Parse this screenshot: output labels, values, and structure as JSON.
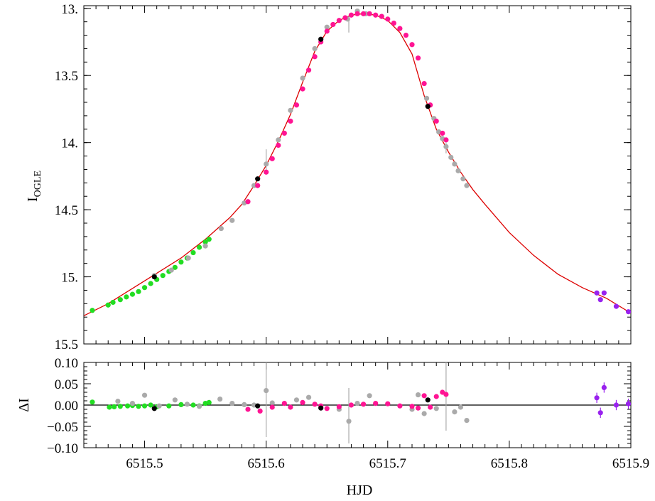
{
  "chart_data": [
    {
      "type": "scatter",
      "ylabel_main": "I",
      "ylabel_sub": "OGLE",
      "xlim": [
        6515.45,
        6515.9
      ],
      "ylim": [
        15.5,
        12.98
      ],
      "y_inverted": true,
      "yticks": [
        "13.",
        "13.5",
        "14.",
        "14.5",
        "15.",
        "15.5"
      ],
      "yticks_values": [
        13.0,
        13.5,
        14.0,
        14.5,
        15.0,
        15.5
      ],
      "model_curve": {
        "color": "#dd0000",
        "points": [
          [
            6515.45,
            15.29
          ],
          [
            6515.47,
            15.2
          ],
          [
            6515.5,
            15.03
          ],
          [
            6515.53,
            14.86
          ],
          [
            6515.55,
            14.72
          ],
          [
            6515.57,
            14.56
          ],
          [
            6515.58,
            14.46
          ],
          [
            6515.59,
            14.32
          ],
          [
            6515.6,
            14.17
          ],
          [
            6515.61,
            13.99
          ],
          [
            6515.62,
            13.79
          ],
          [
            6515.63,
            13.55
          ],
          [
            6515.64,
            13.32
          ],
          [
            6515.65,
            13.17
          ],
          [
            6515.66,
            13.09
          ],
          [
            6515.67,
            13.05
          ],
          [
            6515.68,
            13.04
          ],
          [
            6515.69,
            13.05
          ],
          [
            6515.7,
            13.09
          ],
          [
            6515.71,
            13.18
          ],
          [
            6515.72,
            13.34
          ],
          [
            6515.73,
            13.65
          ],
          [
            6515.74,
            13.9
          ],
          [
            6515.75,
            14.07
          ],
          [
            6515.76,
            14.22
          ],
          [
            6515.77,
            14.35
          ],
          [
            6515.78,
            14.46
          ],
          [
            6515.8,
            14.67
          ],
          [
            6515.82,
            14.84
          ],
          [
            6515.84,
            14.98
          ],
          [
            6515.86,
            15.08
          ],
          [
            6515.88,
            15.16
          ],
          [
            6515.9,
            15.27
          ]
        ]
      },
      "series": [
        {
          "color": "#22dd22",
          "points": [
            [
              6515.457,
              15.25
            ],
            [
              6515.47,
              15.21
            ],
            [
              6515.474,
              15.19
            ],
            [
              6515.48,
              15.17
            ],
            [
              6515.485,
              15.15
            ],
            [
              6515.49,
              15.13
            ],
            [
              6515.495,
              15.11
            ],
            [
              6515.5,
              15.08
            ],
            [
              6515.505,
              15.05
            ],
            [
              6515.51,
              15.02
            ],
            [
              6515.515,
              14.99
            ],
            [
              6515.52,
              14.96
            ],
            [
              6515.525,
              14.93
            ],
            [
              6515.53,
              14.89
            ],
            [
              6515.535,
              14.86
            ],
            [
              6515.54,
              14.82
            ],
            [
              6515.545,
              14.78
            ],
            [
              6515.55,
              14.74
            ],
            [
              6515.553,
              14.72
            ]
          ]
        },
        {
          "color": "#aaaaaa",
          "points": [
            [
              6515.508,
              14.99
            ],
            [
              6515.522,
              14.95
            ],
            [
              6515.536,
              14.86
            ],
            [
              6515.55,
              14.77
            ],
            [
              6515.563,
              14.64
            ],
            [
              6515.572,
              14.58
            ],
            [
              6515.582,
              14.45
            ],
            [
              6515.59,
              14.32
            ],
            [
              6515.6,
              14.16
            ],
            [
              6515.61,
              13.98
            ],
            [
              6515.62,
              13.76
            ],
            [
              6515.63,
              13.52
            ],
            [
              6515.64,
              13.3
            ],
            [
              6515.65,
              13.14
            ],
            [
              6515.667,
              13.08
            ],
            [
              6515.675,
              13.02
            ],
            [
              6515.682,
              13.04
            ],
            [
              6515.695,
              13.06
            ],
            [
              6515.732,
              13.67
            ],
            [
              6515.738,
              13.82
            ],
            [
              6515.742,
              13.92
            ],
            [
              6515.745,
              13.97
            ],
            [
              6515.748,
              14.03
            ],
            [
              6515.752,
              14.11
            ],
            [
              6515.755,
              14.16
            ],
            [
              6515.758,
              14.21
            ],
            [
              6515.762,
              14.27
            ],
            [
              6515.765,
              14.32
            ]
          ]
        },
        {
          "color": "#ff1493",
          "points": [
            [
              6515.585,
              14.44
            ],
            [
              6515.593,
              14.32
            ],
            [
              6515.6,
              14.22
            ],
            [
              6515.605,
              14.12
            ],
            [
              6515.61,
              14.02
            ],
            [
              6515.615,
              13.93
            ],
            [
              6515.62,
              13.84
            ],
            [
              6515.625,
              13.72
            ],
            [
              6515.63,
              13.6
            ],
            [
              6515.635,
              13.46
            ],
            [
              6515.64,
              13.36
            ],
            [
              6515.645,
              13.25
            ],
            [
              6515.65,
              13.17
            ],
            [
              6515.655,
              13.12
            ],
            [
              6515.66,
              13.09
            ],
            [
              6515.665,
              13.07
            ],
            [
              6515.67,
              13.05
            ],
            [
              6515.675,
              13.04
            ],
            [
              6515.68,
              13.04
            ],
            [
              6515.685,
              13.04
            ],
            [
              6515.69,
              13.05
            ],
            [
              6515.695,
              13.06
            ],
            [
              6515.7,
              13.08
            ],
            [
              6515.705,
              13.11
            ],
            [
              6515.71,
              13.15
            ],
            [
              6515.715,
              13.2
            ],
            [
              6515.72,
              13.27
            ],
            [
              6515.725,
              13.37
            ],
            [
              6515.73,
              13.56
            ],
            [
              6515.735,
              13.72
            ],
            [
              6515.74,
              13.84
            ],
            [
              6515.745,
              13.93
            ],
            [
              6515.748,
              13.98
            ]
          ]
        },
        {
          "color": "#9922ee",
          "points": [
            [
              6515.872,
              15.12
            ],
            [
              6515.875,
              15.17
            ],
            [
              6515.878,
              15.12
            ],
            [
              6515.888,
              15.22
            ],
            [
              6515.898,
              15.26
            ]
          ]
        },
        {
          "color": "#000000",
          "points": [
            [
              6515.508,
              15.0
            ],
            [
              6515.593,
              14.27
            ],
            [
              6515.645,
              13.23
            ],
            [
              6515.733,
              13.73
            ]
          ]
        }
      ]
    },
    {
      "type": "scatter",
      "ylabel": "ΔI",
      "xlabel": "HJD",
      "xlim": [
        6515.45,
        6515.9
      ],
      "ylim": [
        -0.1,
        0.1
      ],
      "xticks": [
        "6515.5",
        "6515.6",
        "6515.7",
        "6515.8",
        "6515.9"
      ],
      "xticks_values": [
        6515.5,
        6515.6,
        6515.7,
        6515.8,
        6515.9
      ],
      "yticks": [
        "0.10",
        "0.05",
        "0.00",
        "−0.05",
        "−0.10"
      ],
      "yticks_values": [
        0.1,
        0.05,
        0.0,
        -0.05,
        -0.1
      ],
      "series": [
        {
          "color": "#22dd22",
          "points": [
            [
              6515.457,
              0.007
            ],
            [
              6515.471,
              -0.005
            ],
            [
              6515.475,
              -0.004
            ],
            [
              6515.48,
              -0.003
            ],
            [
              6515.486,
              -0.002
            ],
            [
              6515.49,
              -0.001
            ],
            [
              6515.495,
              -0.003
            ],
            [
              6515.5,
              -0.002
            ],
            [
              6515.505,
              0.0
            ],
            [
              6515.51,
              -0.004
            ],
            [
              6515.52,
              -0.002
            ],
            [
              6515.53,
              0.001
            ],
            [
              6515.54,
              0.0
            ],
            [
              6515.545,
              -0.002
            ],
            [
              6515.55,
              0.004
            ],
            [
              6515.553,
              0.006
            ]
          ]
        },
        {
          "color": "#aaaaaa",
          "points": [
            [
              6515.478,
              0.009
            ],
            [
              6515.49,
              0.004
            ],
            [
              6515.5,
              0.023
            ],
            [
              6515.512,
              -0.002
            ],
            [
              6515.525,
              0.012
            ],
            [
              6515.535,
              0.002
            ],
            [
              6515.545,
              -0.003
            ],
            [
              6515.562,
              0.014
            ],
            [
              6515.572,
              0.004
            ],
            [
              6515.582,
              0.001
            ],
            [
              6515.59,
              0.0
            ],
            [
              6515.6,
              0.034
            ],
            [
              6515.605,
              0.005
            ],
            [
              6515.625,
              0.012
            ],
            [
              6515.635,
              0.018
            ],
            [
              6515.66,
              -0.01
            ],
            [
              6515.668,
              -0.038
            ],
            [
              6515.675,
              0.004
            ],
            [
              6515.685,
              0.022
            ],
            [
              6515.72,
              -0.01
            ],
            [
              6515.725,
              0.024
            ],
            [
              6515.73,
              -0.02
            ],
            [
              6515.74,
              -0.008
            ],
            [
              6515.755,
              -0.016
            ],
            [
              6515.76,
              -0.005
            ],
            [
              6515.765,
              -0.036
            ]
          ]
        },
        {
          "color": "#ff1493",
          "points": [
            [
              6515.585,
              -0.01
            ],
            [
              6515.595,
              -0.014
            ],
            [
              6515.605,
              -0.005
            ],
            [
              6515.615,
              0.004
            ],
            [
              6515.62,
              -0.005
            ],
            [
              6515.63,
              0.006
            ],
            [
              6515.64,
              0.002
            ],
            [
              6515.645,
              -0.002
            ],
            [
              6515.65,
              -0.008
            ],
            [
              6515.66,
              -0.004
            ],
            [
              6515.67,
              0.0
            ],
            [
              6515.68,
              0.002
            ],
            [
              6515.69,
              0.004
            ],
            [
              6515.7,
              0.003
            ],
            [
              6515.71,
              -0.002
            ],
            [
              6515.72,
              -0.003
            ],
            [
              6515.725,
              -0.007
            ],
            [
              6515.73,
              0.022
            ],
            [
              6515.735,
              -0.005
            ],
            [
              6515.74,
              0.02
            ],
            [
              6515.745,
              0.03
            ],
            [
              6515.748,
              0.025
            ]
          ]
        },
        {
          "color": "#9922ee",
          "points": [
            [
              6515.872,
              0.017
            ],
            [
              6515.875,
              -0.018
            ],
            [
              6515.878,
              0.041
            ],
            [
              6515.888,
              0.0
            ],
            [
              6515.898,
              0.003
            ]
          ]
        },
        {
          "color": "#000000",
          "points": [
            [
              6515.508,
              -0.008
            ],
            [
              6515.593,
              -0.002
            ],
            [
              6515.645,
              -0.007
            ],
            [
              6515.733,
              0.012
            ]
          ]
        }
      ],
      "errorbars": [
        {
          "x": 6515.6,
          "lo": -0.075,
          "hi": 0.1
        },
        {
          "x": 6515.668,
          "lo": -0.09,
          "hi": 0.04
        },
        {
          "x": 6515.748,
          "lo": -0.06,
          "hi": 0.1
        }
      ]
    }
  ]
}
